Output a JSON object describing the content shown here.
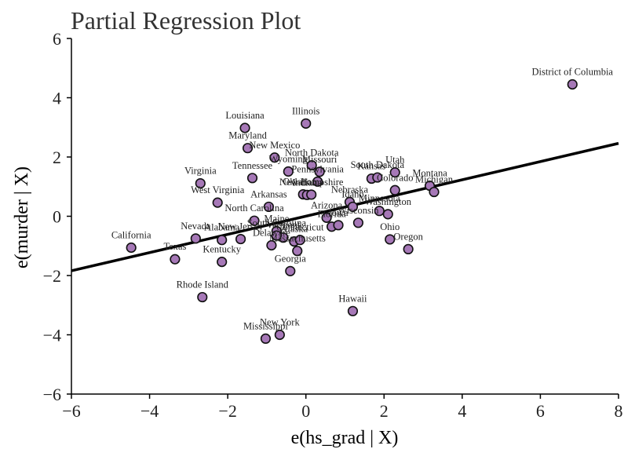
{
  "chart_data": {
    "type": "scatter",
    "title": "Partial Regression Plot",
    "xlabel": "e(hs_grad | X)",
    "ylabel": "e(murder | X)",
    "xlim": [
      -6,
      8
    ],
    "ylim": [
      -6,
      6
    ],
    "xticks": [
      -6,
      -4,
      -2,
      0,
      2,
      4,
      6,
      8
    ],
    "yticks": [
      -6,
      -4,
      -2,
      0,
      2,
      4,
      6
    ],
    "xtick_labels": [
      "−6",
      "−4",
      "−2",
      "0",
      "2",
      "4",
      "6",
      "8"
    ],
    "ytick_labels": [
      "−6",
      "−4",
      "−2",
      "0",
      "2",
      "4",
      "6"
    ],
    "grid": false,
    "marker_color": "#a678b7",
    "marker_edge": "#111111",
    "line_color": "#000000",
    "fit_line": {
      "x": [
        -6,
        8
      ],
      "y": [
        -1.84,
        2.46
      ]
    },
    "points": [
      {
        "label": "District of Columbia",
        "x": 6.82,
        "y": 4.45
      },
      {
        "label": "Illinois",
        "x": 0.0,
        "y": 3.13
      },
      {
        "label": "Louisiana",
        "x": -1.56,
        "y": 2.98
      },
      {
        "label": "Maryland",
        "x": -1.49,
        "y": 2.3
      },
      {
        "label": "New Mexico",
        "x": -0.8,
        "y": 1.98
      },
      {
        "label": "North Dakota",
        "x": 0.15,
        "y": 1.72
      },
      {
        "label": "Wyoming",
        "x": -0.45,
        "y": 1.51
      },
      {
        "label": "Missouri",
        "x": 0.35,
        "y": 1.5
      },
      {
        "label": "Pennsylvania",
        "x": 0.3,
        "y": 1.17
      },
      {
        "label": "Utah",
        "x": 2.28,
        "y": 1.48
      },
      {
        "label": "Kansas",
        "x": 1.68,
        "y": 1.27
      },
      {
        "label": "South Dakota",
        "x": 1.83,
        "y": 1.31
      },
      {
        "label": "Colorado",
        "x": 2.28,
        "y": 0.88
      },
      {
        "label": "Montana",
        "x": 3.17,
        "y": 1.03
      },
      {
        "label": "Michigan",
        "x": 3.28,
        "y": 0.82
      },
      {
        "label": "Virginia",
        "x": -2.7,
        "y": 1.11
      },
      {
        "label": "Tennessee",
        "x": -1.37,
        "y": 1.29
      },
      {
        "label": "Oklahoma",
        "x": -0.07,
        "y": 0.74
      },
      {
        "label": "Indiana",
        "x": 0.03,
        "y": 0.72
      },
      {
        "label": "New Hampshire",
        "x": 0.14,
        "y": 0.73
      },
      {
        "label": "West Virginia",
        "x": -2.26,
        "y": 0.46
      },
      {
        "label": "Arkansas",
        "x": -0.95,
        "y": 0.32
      },
      {
        "label": "Nebraska",
        "x": 1.12,
        "y": 0.48
      },
      {
        "label": "Idaho",
        "x": 1.2,
        "y": 0.32
      },
      {
        "label": "Minnesota",
        "x": 1.88,
        "y": 0.18
      },
      {
        "label": "Washington",
        "x": 2.1,
        "y": 0.07
      },
      {
        "label": "Arizona",
        "x": 0.53,
        "y": -0.05
      },
      {
        "label": "Wisconsin",
        "x": 1.34,
        "y": -0.22
      },
      {
        "label": "Florida",
        "x": 0.66,
        "y": -0.35
      },
      {
        "label": "Iowa",
        "x": 0.83,
        "y": -0.3
      },
      {
        "label": "North Carolina",
        "x": -1.32,
        "y": -0.15
      },
      {
        "label": "Maine",
        "x": -0.75,
        "y": -0.5
      },
      {
        "label": "Vermont",
        "x": -0.58,
        "y": -0.72
      },
      {
        "label": "South Carolina",
        "x": -0.75,
        "y": -0.65
      },
      {
        "label": "Alaska",
        "x": -0.3,
        "y": -0.85
      },
      {
        "label": "Connecticut",
        "x": -0.15,
        "y": -0.8
      },
      {
        "label": "Ohio",
        "x": 2.15,
        "y": -0.78
      },
      {
        "label": "Oregon",
        "x": 2.62,
        "y": -1.11
      },
      {
        "label": "Nevada",
        "x": -2.82,
        "y": -0.75
      },
      {
        "label": "Alabama",
        "x": -2.15,
        "y": -0.8
      },
      {
        "label": "New Jersey",
        "x": -1.67,
        "y": -0.77
      },
      {
        "label": "Delaware",
        "x": -0.88,
        "y": -0.98
      },
      {
        "label": "Massachusetts",
        "x": -0.22,
        "y": -1.17
      },
      {
        "label": "California",
        "x": -4.47,
        "y": -1.06
      },
      {
        "label": "Texas",
        "x": -3.35,
        "y": -1.45
      },
      {
        "label": "Kentucky",
        "x": -2.15,
        "y": -1.54
      },
      {
        "label": "Georgia",
        "x": -0.4,
        "y": -1.85
      },
      {
        "label": "Rhode Island",
        "x": -2.65,
        "y": -2.73
      },
      {
        "label": "Hawaii",
        "x": 1.2,
        "y": -3.2
      },
      {
        "label": "New York",
        "x": -0.67,
        "y": -4.0
      },
      {
        "label": "Mississippi",
        "x": -1.03,
        "y": -4.13
      }
    ]
  }
}
